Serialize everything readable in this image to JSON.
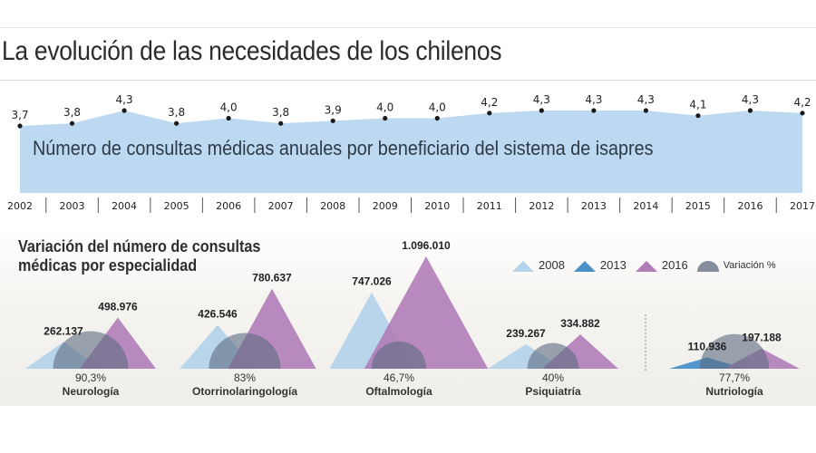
{
  "header": {
    "title": "La evolución de las necesidades de los chilenos"
  },
  "colors": {
    "area_fill": "#bcd9f1",
    "dot": "#1a1a1a",
    "year_2008": "#b5d3ea",
    "year_2013": "#4a90c9",
    "year_2016": "#b07db8",
    "variation": "#5c6a80"
  },
  "chart_data": [
    {
      "type": "area",
      "title": "Número de consultas médicas anuales por beneficiario del sistema de isapres",
      "x": [
        "2002",
        "2003",
        "2004",
        "2005",
        "2006",
        "2007",
        "2008",
        "2009",
        "2010",
        "2011",
        "2012",
        "2013",
        "2014",
        "2015",
        "2016",
        "2017"
      ],
      "values": [
        3.7,
        3.8,
        4.3,
        3.8,
        4.0,
        3.8,
        3.9,
        4.0,
        4.0,
        4.2,
        4.3,
        4.3,
        4.3,
        4.1,
        4.3,
        4.2
      ],
      "value_labels": [
        "3,7",
        "3,8",
        "4,3",
        "3,8",
        "4,0",
        "3,8",
        "3,9",
        "4,0",
        "4,0",
        "4,2",
        "4,3",
        "4,3",
        "4,3",
        "4,1",
        "4,3",
        "4,2"
      ],
      "xlabel": "",
      "ylabel": "",
      "grid": false
    },
    {
      "type": "bar",
      "title": "Variación del número de consultas médicas por especialidad",
      "legend": [
        {
          "key": "2008",
          "label": "2008"
        },
        {
          "key": "2013",
          "label": "2013"
        },
        {
          "key": "2016",
          "label": "2016"
        },
        {
          "key": "variation",
          "label": "Variación %"
        }
      ],
      "legend_position": "top-right",
      "categories": [
        "Neurología",
        "Otorrinolaringología",
        "Oftalmología",
        "Psiquiatría",
        "Nutriología"
      ],
      "series": [
        {
          "name": "base",
          "years": [
            "2008",
            "2008",
            "2008",
            "2008",
            "2013"
          ],
          "values": [
            262137,
            426546,
            747026,
            239267,
            110936
          ],
          "labels": [
            "262.137",
            "426.546",
            "747.026",
            "239.267",
            "110.936"
          ]
        },
        {
          "name": "2016",
          "values": [
            498976,
            780637,
            1096010,
            334882,
            197188
          ],
          "labels": [
            "498.976",
            "780.637",
            "1.096.010",
            "334.882",
            "197.188"
          ]
        }
      ],
      "variation_pct": [
        90.3,
        83,
        46.7,
        40,
        77.7
      ],
      "variation_labels": [
        "90,3%",
        "83%",
        "46,7%",
        "40%",
        "77,7%"
      ]
    }
  ]
}
